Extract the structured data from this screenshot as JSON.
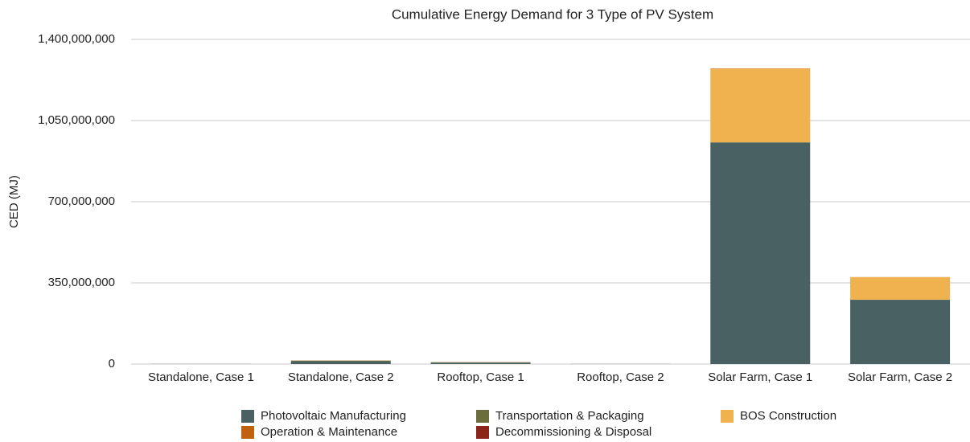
{
  "chart_data": {
    "type": "stacked_bar",
    "title": "Cumulative Energy Demand for 3 Type of PV System",
    "y_label": "CED (MJ)",
    "categories": [
      "Standalone, Case 1",
      "Standalone, Case 2",
      "Rooftop, Case 1",
      "Rooftop, Case 2",
      "Solar Farm, Case 1",
      "Solar Farm, Case 2"
    ],
    "series": [
      {
        "name": "Photovoltaic Manufacturing",
        "color": "#4a6163",
        "values": [
          400000,
          12000000,
          6000000,
          400000,
          955000000,
          277000000
        ]
      },
      {
        "name": "Transportation & Packaging",
        "color": "#6b6e3c",
        "values": [
          100000,
          3000000,
          2000000,
          100000,
          1000000,
          500000
        ]
      },
      {
        "name": "BOS Construction",
        "color": "#f0b24e",
        "values": [
          100000,
          500000,
          500000,
          100000,
          318000000,
          97000000
        ]
      },
      {
        "name": "Operation & Maintenance",
        "color": "#c0610f",
        "values": [
          10000,
          100000,
          100000,
          10000,
          500000,
          200000
        ]
      },
      {
        "name": "Decommissioning & Disposal",
        "color": "#8b2419",
        "values": [
          10000,
          100000,
          100000,
          10000,
          500000,
          200000
        ]
      }
    ],
    "ylim": [
      0,
      1400000000
    ],
    "yticks": [
      0,
      {
        "value": 350000000,
        "label": "350,000,000"
      },
      {
        "value": 700000000,
        "label": "700,000,000"
      },
      {
        "value": 1050000000,
        "label": "1,050,000,000"
      },
      {
        "value": 1400000000,
        "label": "1,400,000,000"
      }
    ],
    "grid": true,
    "legend": "bottom"
  }
}
